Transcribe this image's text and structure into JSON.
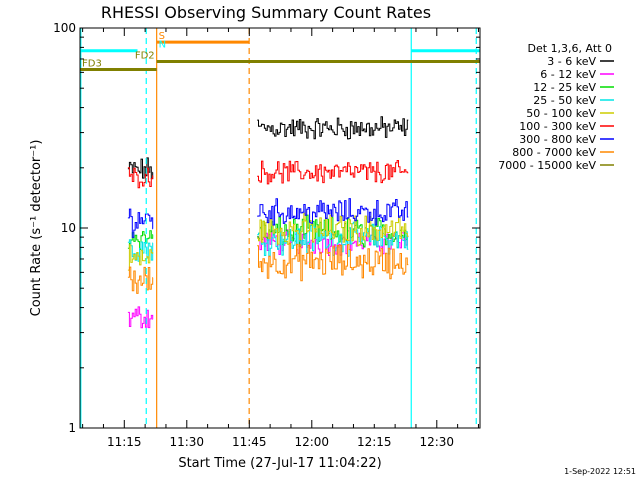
{
  "chart_data": {
    "type": "line",
    "title": "RHESSI Observing Summary Count Rates",
    "xlabel": "Start Time (27-Jul-17 11:04:22)",
    "ylabel": "Count Rate (s⁻¹ detector⁻¹)",
    "y_scale": "log",
    "ylim": [
      1,
      100
    ],
    "xlim_minutes": [
      0,
      96
    ],
    "x_ticks": [
      {
        "minute": 10.63,
        "label": "11:15"
      },
      {
        "minute": 25.63,
        "label": "11:30"
      },
      {
        "minute": 40.63,
        "label": "11:45"
      },
      {
        "minute": 55.63,
        "label": "12:00"
      },
      {
        "minute": 70.63,
        "label": "12:15"
      },
      {
        "minute": 85.63,
        "label": "12:30"
      }
    ],
    "y_ticks": [
      {
        "value": 1,
        "label": "1"
      },
      {
        "value": 10,
        "label": "10"
      },
      {
        "value": 100,
        "label": "100"
      }
    ],
    "legend_title": "Det 1,3,6, Att 0",
    "legend_position": "right",
    "series": [
      {
        "name": "3 - 6 keV",
        "color": "#000000",
        "segments": [
          {
            "x0": 11.5,
            "x1": 17.5,
            "mean": 19.5,
            "spread": 0.05
          },
          {
            "x0": 42.5,
            "x1": 78.8,
            "mean": 31.5,
            "spread": 0.045
          }
        ]
      },
      {
        "name": "6 - 12 keV",
        "color": "#ff00ff",
        "segments": [
          {
            "x0": 11.5,
            "x1": 17.5,
            "mean": 3.6,
            "spread": 0.05
          },
          {
            "x0": 42.5,
            "x1": 78.8,
            "mean": 8.5,
            "spread": 0.05
          }
        ]
      },
      {
        "name": "12 - 25 keV",
        "color": "#00dd00",
        "segments": [
          {
            "x0": 11.5,
            "x1": 17.5,
            "mean": 9.0,
            "spread": 0.05
          },
          {
            "x0": 42.5,
            "x1": 78.8,
            "mean": 9.5,
            "spread": 0.06
          }
        ]
      },
      {
        "name": "25 - 50 keV",
        "color": "#00e5e5",
        "segments": [
          {
            "x0": 11.5,
            "x1": 17.5,
            "mean": 8.0,
            "spread": 0.06
          },
          {
            "x0": 42.5,
            "x1": 78.8,
            "mean": 8.8,
            "spread": 0.06
          }
        ]
      },
      {
        "name": "50 - 100 keV",
        "color": "#cccc00",
        "segments": [
          {
            "x0": 11.5,
            "x1": 17.5,
            "mean": 7.0,
            "spread": 0.06
          },
          {
            "x0": 42.5,
            "x1": 78.8,
            "mean": 9.8,
            "spread": 0.06
          }
        ]
      },
      {
        "name": "100 - 300 keV",
        "color": "#ff0000",
        "segments": [
          {
            "x0": 11.5,
            "x1": 17.5,
            "mean": 18.0,
            "spread": 0.04
          },
          {
            "x0": 42.5,
            "x1": 78.8,
            "mean": 19.0,
            "spread": 0.045
          }
        ]
      },
      {
        "name": "300 - 800 keV",
        "color": "#0000ff",
        "segments": [
          {
            "x0": 11.5,
            "x1": 17.5,
            "mean": 11.0,
            "spread": 0.06
          },
          {
            "x0": 42.5,
            "x1": 78.8,
            "mean": 12.0,
            "spread": 0.05
          }
        ]
      },
      {
        "name": "800 - 7000 keV",
        "color": "#ff8800",
        "segments": [
          {
            "x0": 11.5,
            "x1": 17.5,
            "mean": 5.5,
            "spread": 0.07
          },
          {
            "x0": 42.5,
            "x1": 78.8,
            "mean": 6.8,
            "spread": 0.07
          }
        ]
      },
      {
        "name": "7000 - 15000 keV",
        "color": "#808000",
        "segments": []
      }
    ],
    "status_bars": [
      {
        "label": "",
        "color": "#00ffff",
        "value": 77,
        "x0": 0,
        "x1": 13.8
      },
      {
        "label": "",
        "color": "#00ffff",
        "value": 77,
        "x0": 79.5,
        "x1": 96
      },
      {
        "label": "S",
        "color": "#ff8800",
        "value": 85,
        "x0": 18.4,
        "x1": 40.6
      },
      {
        "label": "N",
        "color": "#00ffff",
        "value": 77,
        "x0": 18.4,
        "x1": 18.4
      },
      {
        "label": "FD2",
        "color": "#808000",
        "value": 68,
        "x0": 18.4,
        "x1": 96
      },
      {
        "label": "FD3",
        "color": "#808000",
        "value": 62,
        "x0": 0,
        "x1": 18.4
      }
    ],
    "vlines": [
      {
        "minute": 0.2,
        "color": "#00ffff",
        "style": "solid"
      },
      {
        "minute": 15.9,
        "color": "#00ffff",
        "style": "dashed"
      },
      {
        "minute": 18.4,
        "color": "#ff8800",
        "style": "solid"
      },
      {
        "minute": 40.6,
        "color": "#ff8800",
        "style": "dashed"
      },
      {
        "minute": 79.5,
        "color": "#00ffff",
        "style": "solid"
      },
      {
        "minute": 95.1,
        "color": "#00ffff",
        "style": "dashed"
      }
    ],
    "footer_date": "1-Sep-2022 12:51"
  }
}
